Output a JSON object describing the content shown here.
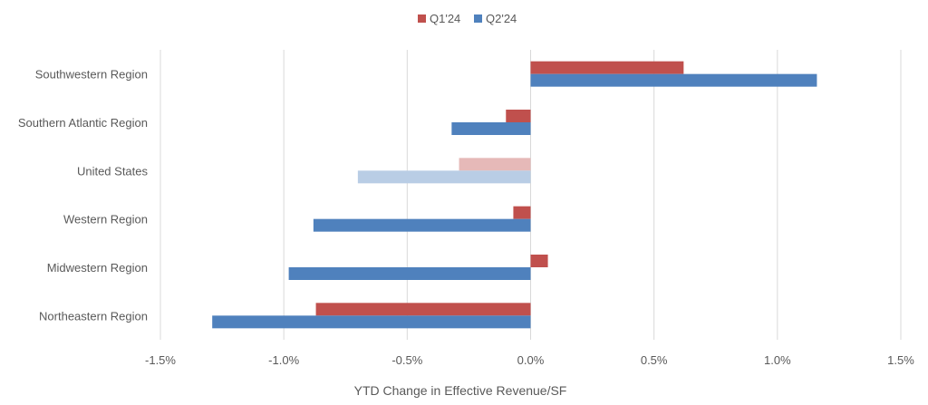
{
  "chart_data": {
    "type": "bar",
    "orientation": "horizontal",
    "categories": [
      "Southwestern Region",
      "Southern Atlantic Region",
      "United States",
      "Western Region",
      "Midwestern Region",
      "Northeastern Region"
    ],
    "series": [
      {
        "name": "Q1'24",
        "color": "#C0504D",
        "values": [
          0.0062,
          -0.001,
          -0.0029,
          -0.0007,
          0.0007,
          -0.0087
        ]
      },
      {
        "name": "Q2'24",
        "color": "#4F81BD",
        "values": [
          0.0116,
          -0.0032,
          -0.007,
          -0.0088,
          -0.0098,
          -0.0129
        ]
      }
    ],
    "highlight": {
      "category": "United States",
      "colors": {
        "Q1'24": "#E6B9B8",
        "Q2'24": "#B9CDE5"
      }
    },
    "xlabel": "YTD Change in Effective Revenue/SF",
    "xlim": [
      -0.015,
      0.015
    ],
    "xticks": [
      -0.015,
      -0.01,
      -0.005,
      0,
      0.005,
      0.01,
      0.015
    ],
    "xtick_labels": [
      "-1.5%",
      "-1.0%",
      "-0.5%",
      "0.0%",
      "0.5%",
      "1.0%",
      "1.5%"
    ],
    "grid": "vertical",
    "legend_position": "top-center"
  }
}
